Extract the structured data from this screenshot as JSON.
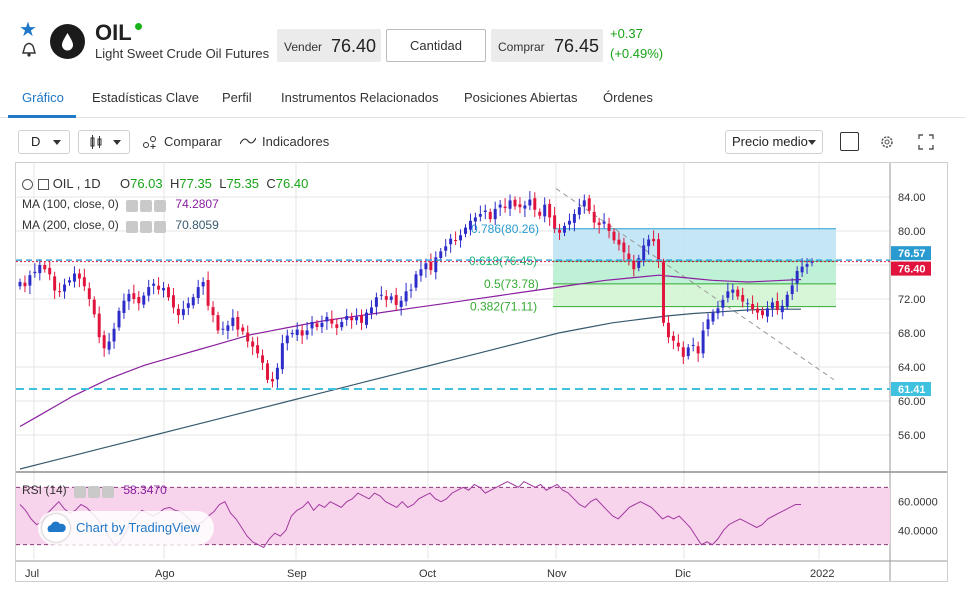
{
  "header": {
    "symbol": "OIL",
    "description": "Light Sweet Crude Oil Futures",
    "sell_label": "Vender",
    "sell_price": "76.40",
    "quantity_label": "Cantidad",
    "buy_label": "Comprar",
    "buy_price": "76.45",
    "change_abs": "+0.37",
    "change_pct": "(+0.49%)",
    "colors": {
      "accent": "#1f78c8",
      "up": "#17a317",
      "live": "#19b319"
    }
  },
  "tabs": [
    {
      "label": "Gráfico",
      "active": true
    },
    {
      "label": "Estadísticas Clave"
    },
    {
      "label": "Perfil"
    },
    {
      "label": "Instrumentos Relacionados"
    },
    {
      "label": "Posiciones Abiertas"
    },
    {
      "label": "Órdenes"
    }
  ],
  "toolbar": {
    "interval": "D",
    "compare_label": "Comparar",
    "indicators_label": "Indicadores",
    "price_type": "Precio medio"
  },
  "chart_legend": {
    "symbol_interval": "OIL , 1D",
    "o_label": "O",
    "o_value": "76.03",
    "h_label": "H",
    "h_value": "77.35",
    "l_label": "L",
    "l_value": "75.35",
    "c_label": "C",
    "c_value": "76.40",
    "ma100_label": "MA (100, close, 0)",
    "ma100_value": "74.2807",
    "ma200_label": "MA (200, close, 0)",
    "ma200_value": "70.8059",
    "rsi_label": "RSI (14)",
    "rsi_value": "58.3470",
    "tradingview_label": "Chart by TradingView"
  },
  "chart_data": {
    "type": "candlestick",
    "x_ticks": [
      "Jul",
      "Ago",
      "Sep",
      "Oct",
      "Nov",
      "Dic",
      "2022"
    ],
    "y_ticks": [
      "84.00",
      "80.00",
      "76.00",
      "72.00",
      "68.00",
      "64.00",
      "60.00",
      "56.00"
    ],
    "ylim": [
      52,
      88
    ],
    "price_tags": [
      {
        "value": 76.57,
        "label": "76.57",
        "kind": "ask"
      },
      {
        "value": 76.4,
        "label": "76.40",
        "kind": "last"
      },
      {
        "value": 61.41,
        "label": "61.41",
        "kind": "level"
      }
    ],
    "fibonacci": [
      {
        "ratio": "0.786",
        "value": 80.26,
        "label": "0.786(80.26)"
      },
      {
        "ratio": "0.618",
        "value": 76.45,
        "label": "0.618(76.45)"
      },
      {
        "ratio": "0.5",
        "value": 73.78,
        "label": "0.5(73.78)"
      },
      {
        "ratio": "0.382",
        "value": 71.11,
        "label": "0.382(71.11)"
      }
    ],
    "closes": [
      74.0,
      73.5,
      74.8,
      75.2,
      76.0,
      75.5,
      74.9,
      73.0,
      72.8,
      73.7,
      74.2,
      75.0,
      74.4,
      73.5,
      72.0,
      70.2,
      67.5,
      66.2,
      67.0,
      68.5,
      70.6,
      71.8,
      72.6,
      72.0,
      71.5,
      72.4,
      73.4,
      73.8,
      73.1,
      73.3,
      72.2,
      71.0,
      70.1,
      70.8,
      71.5,
      72.2,
      73.4,
      74.0,
      71.2,
      70.1,
      68.3,
      68.5,
      68.9,
      69.8,
      68.4,
      68.2,
      67.0,
      66.4,
      65.6,
      64.5,
      62.5,
      62.3,
      63.9,
      66.8,
      67.7,
      68.0,
      68.4,
      67.7,
      68.3,
      69.3,
      68.7,
      69.2,
      69.9,
      69.1,
      68.6,
      69.3,
      70.0,
      69.5,
      69.9,
      69.2,
      70.4,
      71.0,
      72.2,
      72.5,
      71.9,
      72.3,
      71.3,
      71.8,
      72.9,
      73.1,
      74.9,
      75.5,
      76.2,
      75.4,
      76.9,
      77.6,
      78.2,
      79.1,
      78.9,
      79.5,
      80.4,
      81.2,
      81.6,
      82.0,
      82.4,
      81.4,
      82.6,
      83.1,
      82.7,
      83.6,
      82.9,
      82.8,
      83.0,
      83.7,
      82.5,
      81.8,
      83.1,
      81.6,
      80.3,
      79.8,
      80.6,
      81.2,
      82.0,
      82.8,
      83.6,
      82.4,
      81.0,
      80.7,
      81.1,
      80.0,
      78.9,
      78.4,
      77.5,
      76.5,
      75.5,
      76.8,
      78.3,
      79.0,
      78.8,
      76.5,
      69.2,
      67.5,
      67.1,
      66.4,
      65.2,
      66.3,
      66.6,
      65.6,
      68.3,
      69.6,
      70.4,
      70.9,
      71.9,
      72.9,
      73.1,
      72.3,
      71.7,
      71.5,
      70.8,
      70.4,
      70.1,
      70.9,
      71.6,
      70.7,
      71.2,
      72.5,
      73.6,
      75.3,
      75.8,
      76.1,
      76.4
    ],
    "ma100": [
      57.0,
      58.2,
      59.4,
      60.6,
      61.6,
      62.6,
      63.4,
      64.2,
      64.8,
      65.4,
      66.0,
      66.6,
      67.2,
      67.8,
      68.2,
      68.6,
      69.0,
      69.4,
      69.7,
      70.0,
      70.3,
      70.6,
      70.9,
      71.2,
      71.5,
      71.8,
      72.1,
      72.4,
      72.7,
      73.0,
      73.3,
      73.6,
      73.9,
      74.2,
      74.4,
      74.6,
      74.8,
      74.6,
      74.4,
      74.2,
      74.1,
      74.0,
      74.1,
      74.2,
      74.3
    ],
    "ma200": [
      52.0,
      52.8,
      53.6,
      54.4,
      55.2,
      56.0,
      56.8,
      57.6,
      58.4,
      59.2,
      60.0,
      60.8,
      61.6,
      62.4,
      63.2,
      64.0,
      64.8,
      65.6,
      66.4,
      67.2,
      68.0,
      68.6,
      69.2,
      69.6,
      70.0,
      70.3,
      70.5,
      70.7,
      70.8,
      70.8
    ],
    "rsi": {
      "ylim": [
        20,
        80
      ],
      "y_ticks": [
        "60.0000",
        "40.0000"
      ],
      "levels": [
        70,
        30
      ],
      "values": [
        58,
        54,
        48,
        44,
        46,
        52,
        56,
        60,
        55,
        52,
        54,
        58,
        56,
        52,
        48,
        42,
        36,
        30,
        32,
        38,
        46,
        50,
        54,
        52,
        50,
        52,
        55,
        56,
        54,
        53,
        50,
        46,
        44,
        46,
        50,
        53,
        58,
        60,
        52,
        48,
        42,
        36,
        32,
        30,
        28,
        34,
        38,
        36,
        40,
        50,
        54,
        56,
        60,
        54,
        58,
        56,
        60,
        58,
        56,
        60,
        62,
        66,
        64,
        62,
        66,
        64,
        60,
        58,
        56,
        60,
        56,
        58,
        62,
        64,
        66,
        62,
        60,
        62,
        66,
        68,
        70,
        68,
        72,
        70,
        66,
        68,
        70,
        72,
        74,
        72,
        70,
        74,
        72,
        70,
        72,
        68,
        70,
        72,
        68,
        66,
        62,
        58,
        56,
        60,
        62,
        58,
        54,
        50,
        48,
        52,
        56,
        58,
        60,
        58,
        56,
        52,
        48,
        50,
        48,
        50,
        46,
        42,
        36,
        30,
        32,
        30,
        34,
        40,
        44,
        46,
        48,
        46,
        44,
        42,
        44,
        48,
        50,
        52,
        54,
        56,
        58,
        58
      ]
    }
  }
}
